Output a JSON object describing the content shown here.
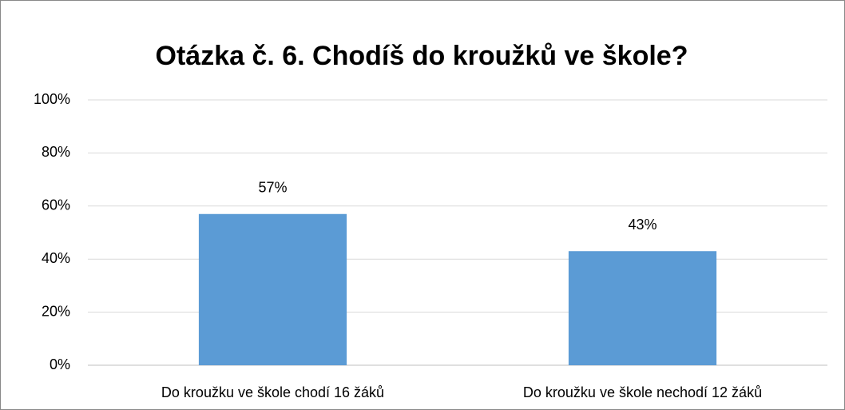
{
  "chart_data": {
    "type": "bar",
    "title": "Otázka č. 6. Chodíš do kroužků ve škole?",
    "categories": [
      "Do kroužku ve škole chodí 16 žáků",
      "Do kroužku ve škole nechodí 12 žáků"
    ],
    "values": [
      57,
      43
    ],
    "value_labels": [
      "57%",
      "43%"
    ],
    "color": "#5b9bd5",
    "ylim": [
      0,
      100
    ],
    "yticks": [
      {
        "value": 0,
        "label": "0%"
      },
      {
        "value": 20,
        "label": "20%"
      },
      {
        "value": 40,
        "label": "40%"
      },
      {
        "value": 60,
        "label": "60%"
      },
      {
        "value": 80,
        "label": "80%"
      },
      {
        "value": 100,
        "label": "100%"
      }
    ],
    "grid": true
  }
}
